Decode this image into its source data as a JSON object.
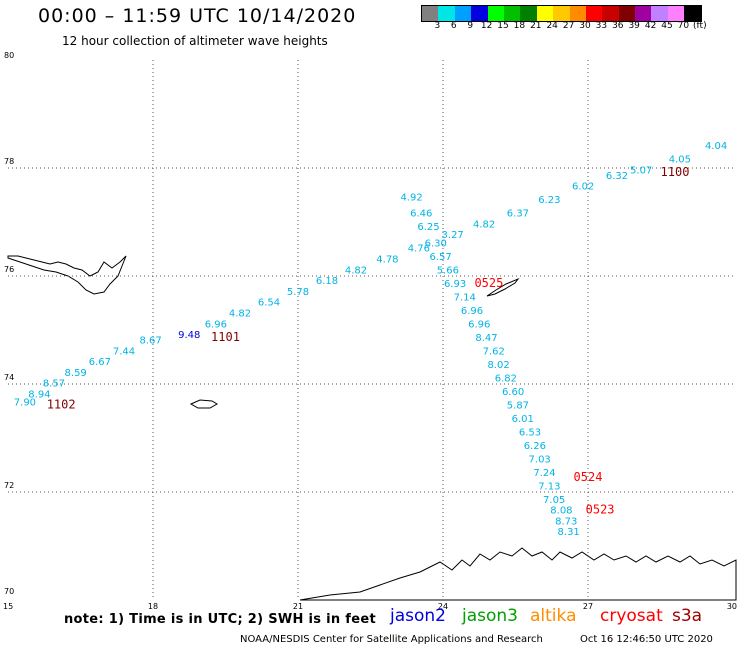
{
  "header": {
    "title": "00:00 – 11:59 UTC 10/14/2020",
    "subtitle": "12 hour collection of altimeter wave heights"
  },
  "colorbar": {
    "colors": [
      "#808080",
      "#00e5e5",
      "#00a0ff",
      "#0000e0",
      "#00ff00",
      "#00c000",
      "#008000",
      "#ffff00",
      "#ffc800",
      "#ff8c00",
      "#ff0000",
      "#c80000",
      "#800000",
      "#a000a0",
      "#c080ff",
      "#ff80ff",
      "#000000"
    ],
    "labels": [
      "3",
      "6",
      "9",
      "12",
      "15",
      "18",
      "21",
      "24",
      "27",
      "30",
      "33",
      "36",
      "39",
      "42",
      "45",
      "70",
      "(ft)"
    ]
  },
  "axes": {
    "x_ticks": [
      "15",
      "18",
      "21",
      "24",
      "27",
      "30"
    ],
    "y_ticks": [
      "80",
      "78",
      "76",
      "74",
      "72",
      "70"
    ],
    "x_range": [
      15,
      30
    ],
    "y_range": [
      70,
      80
    ],
    "grid": "dotted"
  },
  "pass_labels": [
    {
      "text": "1102",
      "lon": 16.1,
      "lat": 73.55,
      "color": "#800000"
    },
    {
      "text": "1101",
      "lon": 19.5,
      "lat": 74.8,
      "color": "#800000"
    },
    {
      "text": "0525",
      "lon": 24.95,
      "lat": 75.8,
      "color": "#ff0000"
    },
    {
      "text": "1100",
      "lon": 28.8,
      "lat": 77.85,
      "color": "#800000"
    },
    {
      "text": "0524",
      "lon": 27.0,
      "lat": 72.2,
      "color": "#ff0000"
    },
    {
      "text": "0523",
      "lon": 27.25,
      "lat": 71.6,
      "color": "#ff0000"
    }
  ],
  "wave_heights": [
    {
      "text": "7.90",
      "lon": 15.35,
      "lat": 73.6,
      "color": "#00b4e6"
    },
    {
      "text": "8.94",
      "lon": 15.65,
      "lat": 73.75,
      "color": "#00b4e6"
    },
    {
      "text": "8.57",
      "lon": 15.95,
      "lat": 73.95,
      "color": "#00b4e6"
    },
    {
      "text": "8.59",
      "lon": 16.4,
      "lat": 74.15,
      "color": "#00b4e6"
    },
    {
      "text": "6.67",
      "lon": 16.9,
      "lat": 74.35,
      "color": "#00b4e6"
    },
    {
      "text": "7.44",
      "lon": 17.4,
      "lat": 74.55,
      "color": "#00b4e6"
    },
    {
      "text": "8.67",
      "lon": 17.95,
      "lat": 74.75,
      "color": "#00b4e6"
    },
    {
      "text": "9.48",
      "lon": 18.75,
      "lat": 74.85,
      "color": "#0000e0"
    },
    {
      "text": "6.96",
      "lon": 19.3,
      "lat": 75.05,
      "color": "#00b4e6"
    },
    {
      "text": "4.82",
      "lon": 19.8,
      "lat": 75.25,
      "color": "#00b4e6"
    },
    {
      "text": "6.54",
      "lon": 20.4,
      "lat": 75.45,
      "color": "#00b4e6"
    },
    {
      "text": "5.78",
      "lon": 21.0,
      "lat": 75.65,
      "color": "#00b4e6"
    },
    {
      "text": "6.18",
      "lon": 21.6,
      "lat": 75.85,
      "color": "#00b4e6"
    },
    {
      "text": "4.82",
      "lon": 22.2,
      "lat": 76.05,
      "color": "#00b4e6"
    },
    {
      "text": "4.78",
      "lon": 22.85,
      "lat": 76.25,
      "color": "#00b4e6"
    },
    {
      "text": "4.92",
      "lon": 23.35,
      "lat": 77.4,
      "color": "#00b4e6"
    },
    {
      "text": "6.46",
      "lon": 23.55,
      "lat": 77.1,
      "color": "#00b4e6"
    },
    {
      "text": "6.25",
      "lon": 23.7,
      "lat": 76.85,
      "color": "#00b4e6"
    },
    {
      "text": "3.27",
      "lon": 24.2,
      "lat": 76.7,
      "color": "#00b4e6"
    },
    {
      "text": "4.76",
      "lon": 23.5,
      "lat": 76.45,
      "color": "#00b4e6"
    },
    {
      "text": "6.30",
      "lon": 23.85,
      "lat": 76.55,
      "color": "#00b4e6"
    },
    {
      "text": "6.57",
      "lon": 23.95,
      "lat": 76.3,
      "color": "#00b4e6"
    },
    {
      "text": "5.66",
      "lon": 24.1,
      "lat": 76.05,
      "color": "#00b4e6"
    },
    {
      "text": "4.82",
      "lon": 24.85,
      "lat": 76.9,
      "color": "#00b4e6"
    },
    {
      "text": "6.37",
      "lon": 25.55,
      "lat": 77.1,
      "color": "#00b4e6"
    },
    {
      "text": "6.23",
      "lon": 26.2,
      "lat": 77.35,
      "color": "#00b4e6"
    },
    {
      "text": "6.02",
      "lon": 26.9,
      "lat": 77.6,
      "color": "#00b4e6"
    },
    {
      "text": "6.32",
      "lon": 27.6,
      "lat": 77.8,
      "color": "#00b4e6"
    },
    {
      "text": "5.07",
      "lon": 28.1,
      "lat": 77.9,
      "color": "#00b4e6"
    },
    {
      "text": "4.05",
      "lon": 28.9,
      "lat": 78.1,
      "color": "#00b4e6"
    },
    {
      "text": "4.04",
      "lon": 29.65,
      "lat": 78.35,
      "color": "#00b4e6"
    },
    {
      "text": "6.93",
      "lon": 24.25,
      "lat": 75.8,
      "color": "#00b4e6"
    },
    {
      "text": "7.14",
      "lon": 24.45,
      "lat": 75.55,
      "color": "#00b4e6"
    },
    {
      "text": "6.96",
      "lon": 24.6,
      "lat": 75.3,
      "color": "#00b4e6"
    },
    {
      "text": "6.96",
      "lon": 24.75,
      "lat": 75.05,
      "color": "#00b4e6"
    },
    {
      "text": "8.47",
      "lon": 24.9,
      "lat": 74.8,
      "color": "#00b4e6"
    },
    {
      "text": "7.62",
      "lon": 25.05,
      "lat": 74.55,
      "color": "#00b4e6"
    },
    {
      "text": "8.02",
      "lon": 25.15,
      "lat": 74.3,
      "color": "#00b4e6"
    },
    {
      "text": "6.82",
      "lon": 25.3,
      "lat": 74.05,
      "color": "#00b4e6"
    },
    {
      "text": "6.60",
      "lon": 25.45,
      "lat": 73.8,
      "color": "#00b4e6"
    },
    {
      "text": "5.87",
      "lon": 25.55,
      "lat": 73.55,
      "color": "#00b4e6"
    },
    {
      "text": "6.01",
      "lon": 25.65,
      "lat": 73.3,
      "color": "#00b4e6"
    },
    {
      "text": "6.53",
      "lon": 25.8,
      "lat": 73.05,
      "color": "#00b4e6"
    },
    {
      "text": "6.26",
      "lon": 25.9,
      "lat": 72.8,
      "color": "#00b4e6"
    },
    {
      "text": "7.03",
      "lon": 26.0,
      "lat": 72.55,
      "color": "#00b4e6"
    },
    {
      "text": "7.24",
      "lon": 26.1,
      "lat": 72.3,
      "color": "#00b4e6"
    },
    {
      "text": "7.13",
      "lon": 26.2,
      "lat": 72.05,
      "color": "#00b4e6"
    },
    {
      "text": "7.05",
      "lon": 26.3,
      "lat": 71.8,
      "color": "#00b4e6"
    },
    {
      "text": "8.08",
      "lon": 26.45,
      "lat": 71.6,
      "color": "#00b4e6"
    },
    {
      "text": "8.73",
      "lon": 26.55,
      "lat": 71.4,
      "color": "#00b4e6"
    },
    {
      "text": "8.31",
      "lon": 26.6,
      "lat": 71.2,
      "color": "#00b4e6"
    }
  ],
  "footer": {
    "note": "note: 1) Time is in UTC; 2) SWH is in feet",
    "legend": [
      {
        "name": "jason2",
        "color": "#0000e0"
      },
      {
        "name": "jason3",
        "color": "#00a000"
      },
      {
        "name": "altika",
        "color": "#ff8c00"
      },
      {
        "name": "cryosat",
        "color": "#ff0000"
      },
      {
        "name": "s3a",
        "color": "#a00000"
      }
    ],
    "credit": "NOAA/NESDIS Center for Satellite Applications and Research",
    "timestamp": "Oct 16 12:46:50 UTC 2020"
  }
}
